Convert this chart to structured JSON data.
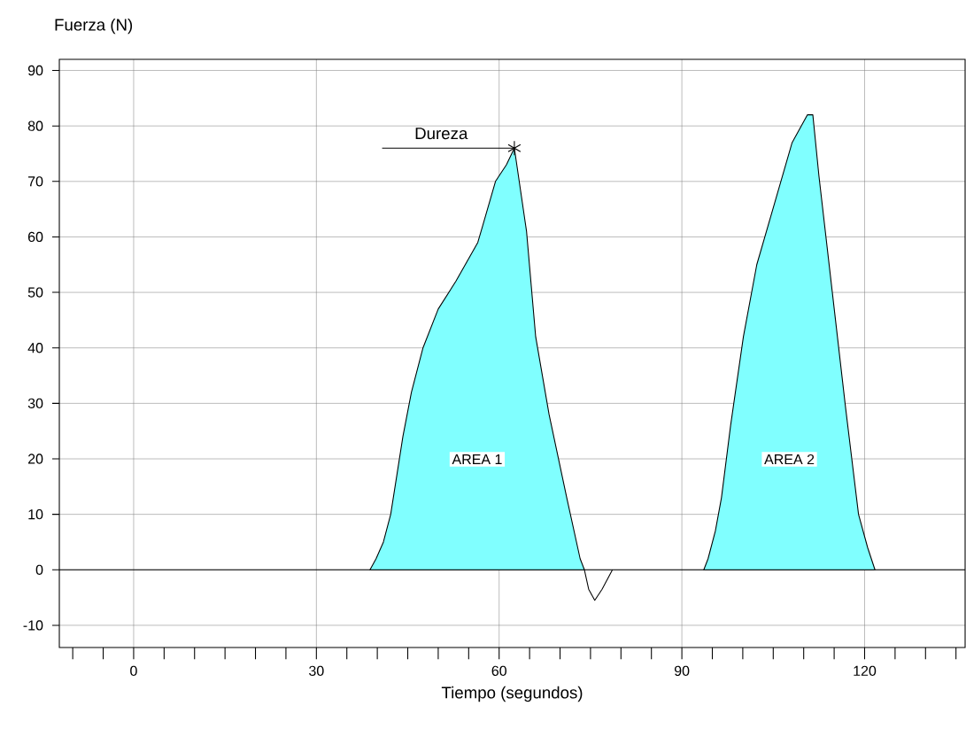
{
  "chart_data": {
    "type": "area",
    "xlabel": "Tiempo (segundos)",
    "ylabel": "Fuerza (N)",
    "xlim": [
      -12.2,
      136.5
    ],
    "ylim": [
      -14,
      92
    ],
    "xticks": [
      {
        "value": -10,
        "label": null
      },
      {
        "value": -5,
        "label": null
      },
      0,
      {
        "value": 5,
        "label": null
      },
      {
        "value": 10,
        "label": null
      },
      {
        "value": 15,
        "label": null
      },
      {
        "value": 20,
        "label": null
      },
      {
        "value": 25,
        "label": null
      },
      30,
      {
        "value": 35,
        "label": null
      },
      {
        "value": 40,
        "label": null
      },
      {
        "value": 45,
        "label": null
      },
      {
        "value": 50,
        "label": null
      },
      {
        "value": 55,
        "label": null
      },
      60,
      {
        "value": 65,
        "label": null
      },
      {
        "value": 70,
        "label": null
      },
      {
        "value": 75,
        "label": null
      },
      {
        "value": 80,
        "label": null
      },
      {
        "value": 85,
        "label": null
      },
      90,
      {
        "value": 95,
        "label": null
      },
      {
        "value": 100,
        "label": null
      },
      {
        "value": 105,
        "label": null
      },
      {
        "value": 110,
        "label": null
      },
      {
        "value": 115,
        "label": null
      },
      120,
      {
        "value": 125,
        "label": null
      },
      {
        "value": 130,
        "label": null
      },
      {
        "value": 135,
        "label": null
      }
    ],
    "yticks": [
      -10,
      0,
      10,
      20,
      30,
      40,
      50,
      60,
      70,
      80,
      90
    ],
    "grid": true,
    "ref_lines": [
      {
        "axis": "y",
        "value": 0,
        "color": "#000000"
      }
    ],
    "series": [
      {
        "color": "#80ffff",
        "x": [
          38.8,
          39.8,
          41,
          42.2,
          43.2,
          44.2,
          45.6,
          47.5,
          50,
          52.9,
          56.5,
          57.3,
          59.4,
          61.2,
          62.5,
          62.9,
          64.5,
          66,
          68.2,
          71.1,
          73.3,
          74
        ],
        "values": [
          0,
          2,
          5,
          10,
          17,
          24,
          32,
          40,
          47,
          52,
          59,
          62,
          70,
          73,
          76,
          73,
          61,
          42,
          28,
          13,
          2,
          0
        ]
      },
      {
        "type": "line",
        "color": "#000000",
        "x": [
          74,
          74.7,
          75.7,
          76.9,
          78.6
        ],
        "values": [
          0,
          -3.5,
          -5.5,
          -3.5,
          0
        ]
      },
      {
        "color": "#80ffff",
        "x": [
          93.6,
          94.3,
          95.5,
          96.5,
          98,
          100.1,
          102.3,
          105.2,
          108.1,
          110.6,
          111.5,
          112.5,
          114.7,
          116.9,
          119,
          120.5,
          121.7
        ],
        "values": [
          0,
          2,
          7,
          13,
          26,
          42,
          55,
          66,
          77,
          82,
          82,
          71,
          50,
          29,
          10,
          4,
          0
        ]
      }
    ],
    "annotations": [
      {
        "text": "Dureza",
        "x": 62.5,
        "y": 76
      },
      "AREA 1",
      "AREA 2"
    ]
  }
}
